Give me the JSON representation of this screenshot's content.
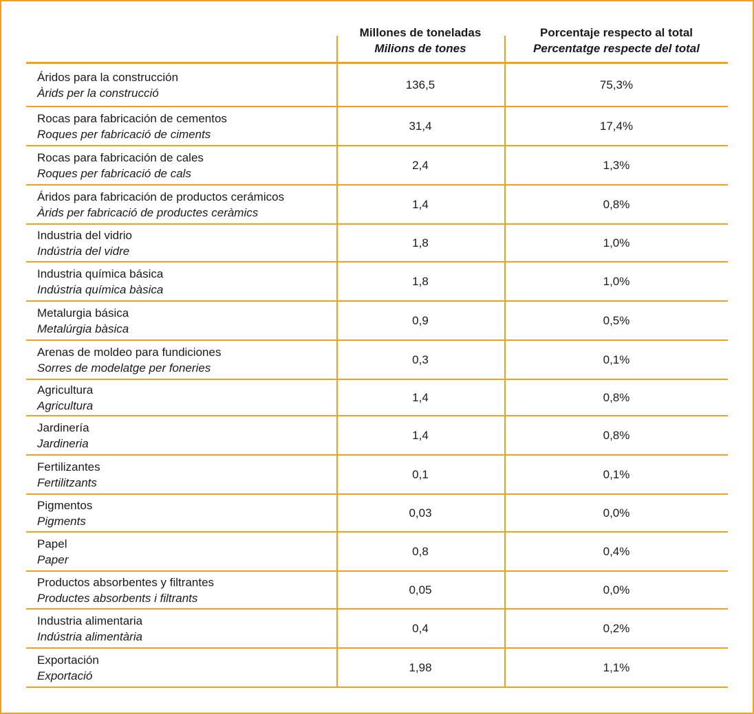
{
  "headers": {
    "col1_es": "Millones de toneladas",
    "col1_ca": "Milions de tones",
    "col2_es": "Porcentaje respecto al total",
    "col2_ca": "Percentatge respecte del total"
  },
  "rows": [
    {
      "es": "Áridos para la construcción",
      "ca": "Àrids per la construcció",
      "tonnes": "136,5",
      "percent": "75,3%"
    },
    {
      "es": "Rocas para fabricación de cementos",
      "ca": "Roques per fabricació de ciments",
      "tonnes": "31,4",
      "percent": "17,4%"
    },
    {
      "es": "Rocas para fabricación de cales",
      "ca": "Roques per fabricació de cals",
      "tonnes": "2,4",
      "percent": "1,3%"
    },
    {
      "es": "Áridos para fabricación de productos cerámicos",
      "ca": "Àrids per fabricació de productes ceràmics",
      "tonnes": "1,4",
      "percent": "0,8%"
    },
    {
      "es": "Industria del vidrio",
      "ca": "Indústria del vidre",
      "tonnes": "1,8",
      "percent": "1,0%"
    },
    {
      "es": "Industria química básica",
      "ca": "Indústria química bàsica",
      "tonnes": "1,8",
      "percent": "1,0%"
    },
    {
      "es": "Metalurgia básica",
      "ca": "Metalúrgia bàsica",
      "tonnes": "0,9",
      "percent": "0,5%"
    },
    {
      "es": "Arenas de moldeo para fundiciones",
      "ca": "Sorres de modelatge per foneries",
      "tonnes": "0,3",
      "percent": "0,1%"
    },
    {
      "es": "Agricultura",
      "ca": "Agricultura",
      "tonnes": "1,4",
      "percent": "0,8%"
    },
    {
      "es": "Jardinería",
      "ca": "Jardineria",
      "tonnes": "1,4",
      "percent": "0,8%"
    },
    {
      "es": "Fertilizantes",
      "ca": "Fertilitzants",
      "tonnes": "0,1",
      "percent": "0,1%"
    },
    {
      "es": "Pigmentos",
      "ca": "Pigments",
      "tonnes": "0,03",
      "percent": "0,0%"
    },
    {
      "es": "Papel",
      "ca": "Paper",
      "tonnes": "0,8",
      "percent": "0,4%"
    },
    {
      "es": "Productos absorbentes y filtrantes",
      "ca": "Productes absorbents i filtrants",
      "tonnes": "0,05",
      "percent": "0,0%"
    },
    {
      "es": "Industria alimentaria",
      "ca": "Indústria alimentària",
      "tonnes": "0,4",
      "percent": "0,2%"
    },
    {
      "es": "Exportación",
      "ca": "Exportació",
      "tonnes": "1,98",
      "percent": "1,1%"
    }
  ],
  "colors": {
    "accent": "#f3a01d",
    "text": "#1a1a1a"
  }
}
